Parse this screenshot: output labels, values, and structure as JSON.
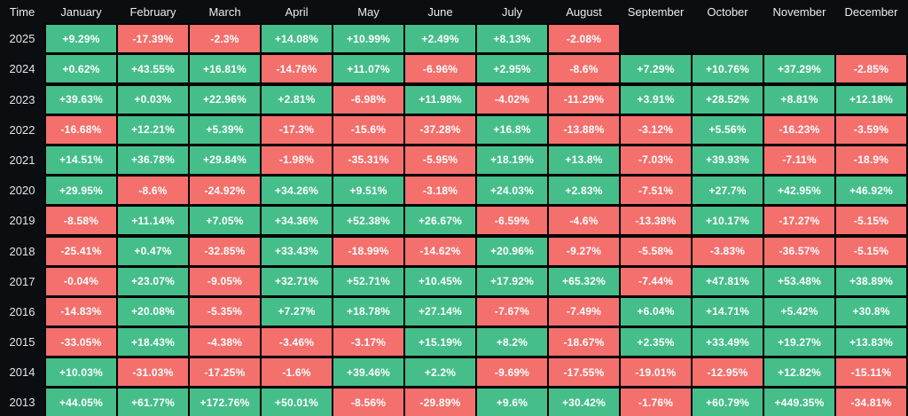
{
  "colors": {
    "background": "#0B0E11",
    "positive": "#46BE8A",
    "negative": "#F4706D",
    "grid_line": "#000000",
    "header_text": "#E9ECEF",
    "year_text": "#E2E6EA",
    "cell_text": "#FFFFFF"
  },
  "table": {
    "corner_label": "Time",
    "months": [
      "January",
      "February",
      "March",
      "April",
      "May",
      "June",
      "July",
      "August",
      "September",
      "October",
      "November",
      "December"
    ],
    "rows": [
      {
        "year": "2025",
        "cells": [
          "+9.29%",
          "-17.39%",
          "-2.3%",
          "+14.08%",
          "+10.99%",
          "+2.49%",
          "+8.13%",
          "-2.08%",
          null,
          null,
          null,
          null
        ]
      },
      {
        "year": "2024",
        "cells": [
          "+0.62%",
          "+43.55%",
          "+16.81%",
          "-14.76%",
          "+11.07%",
          "-6.96%",
          "+2.95%",
          "-8.6%",
          "+7.29%",
          "+10.76%",
          "+37.29%",
          "-2.85%"
        ]
      },
      {
        "year": "2023",
        "cells": [
          "+39.63%",
          "+0.03%",
          "+22.96%",
          "+2.81%",
          "-6.98%",
          "+11.98%",
          "-4.02%",
          "-11.29%",
          "+3.91%",
          "+28.52%",
          "+8.81%",
          "+12.18%"
        ]
      },
      {
        "year": "2022",
        "cells": [
          "-16.68%",
          "+12.21%",
          "+5.39%",
          "-17.3%",
          "-15.6%",
          "-37.28%",
          "+16.8%",
          "-13.88%",
          "-3.12%",
          "+5.56%",
          "-16.23%",
          "-3.59%"
        ]
      },
      {
        "year": "2021",
        "cells": [
          "+14.51%",
          "+36.78%",
          "+29.84%",
          "-1.98%",
          "-35.31%",
          "-5.95%",
          "+18.19%",
          "+13.8%",
          "-7.03%",
          "+39.93%",
          "-7.11%",
          "-18.9%"
        ]
      },
      {
        "year": "2020",
        "cells": [
          "+29.95%",
          "-8.6%",
          "-24.92%",
          "+34.26%",
          "+9.51%",
          "-3.18%",
          "+24.03%",
          "+2.83%",
          "-7.51%",
          "+27.7%",
          "+42.95%",
          "+46.92%"
        ]
      },
      {
        "year": "2019",
        "cells": [
          "-8.58%",
          "+11.14%",
          "+7.05%",
          "+34.36%",
          "+52.38%",
          "+26.67%",
          "-6.59%",
          "-4.6%",
          "-13.38%",
          "+10.17%",
          "-17.27%",
          "-5.15%"
        ]
      },
      {
        "year": "2018",
        "cells": [
          "-25.41%",
          "+0.47%",
          "-32.85%",
          "+33.43%",
          "-18.99%",
          "-14.62%",
          "+20.96%",
          "-9.27%",
          "-5.58%",
          "-3.83%",
          "-36.57%",
          "-5.15%"
        ]
      },
      {
        "year": "2017",
        "cells": [
          "-0.04%",
          "+23.07%",
          "-9.05%",
          "+32.71%",
          "+52.71%",
          "+10.45%",
          "+17.92%",
          "+65.32%",
          "-7.44%",
          "+47.81%",
          "+53.48%",
          "+38.89%"
        ]
      },
      {
        "year": "2016",
        "cells": [
          "-14.83%",
          "+20.08%",
          "-5.35%",
          "+7.27%",
          "+18.78%",
          "+27.14%",
          "-7.67%",
          "-7.49%",
          "+6.04%",
          "+14.71%",
          "+5.42%",
          "+30.8%"
        ]
      },
      {
        "year": "2015",
        "cells": [
          "-33.05%",
          "+18.43%",
          "-4.38%",
          "-3.46%",
          "-3.17%",
          "+15.19%",
          "+8.2%",
          "-18.67%",
          "+2.35%",
          "+33.49%",
          "+19.27%",
          "+13.83%"
        ]
      },
      {
        "year": "2014",
        "cells": [
          "+10.03%",
          "-31.03%",
          "-17.25%",
          "-1.6%",
          "+39.46%",
          "+2.2%",
          "-9.69%",
          "-17.55%",
          "-19.01%",
          "-12.95%",
          "+12.82%",
          "-15.11%"
        ]
      },
      {
        "year": "2013",
        "cells": [
          "+44.05%",
          "+61.77%",
          "+172.76%",
          "+50.01%",
          "-8.56%",
          "-29.89%",
          "+9.6%",
          "+30.42%",
          "-1.76%",
          "+60.79%",
          "+449.35%",
          "-34.81%"
        ]
      }
    ]
  },
  "chart_data": {
    "type": "heatmap",
    "title": "",
    "xlabel": "",
    "ylabel": "Time",
    "unit": "%",
    "columns": [
      "January",
      "February",
      "March",
      "April",
      "May",
      "June",
      "July",
      "August",
      "September",
      "October",
      "November",
      "December"
    ],
    "rows": [
      "2025",
      "2024",
      "2023",
      "2022",
      "2021",
      "2020",
      "2019",
      "2018",
      "2017",
      "2016",
      "2015",
      "2014",
      "2013"
    ],
    "values": [
      [
        9.29,
        -17.39,
        -2.3,
        14.08,
        10.99,
        2.49,
        8.13,
        -2.08,
        null,
        null,
        null,
        null
      ],
      [
        0.62,
        43.55,
        16.81,
        -14.76,
        11.07,
        -6.96,
        2.95,
        -8.6,
        7.29,
        10.76,
        37.29,
        -2.85
      ],
      [
        39.63,
        0.03,
        22.96,
        2.81,
        -6.98,
        11.98,
        -4.02,
        -11.29,
        3.91,
        28.52,
        8.81,
        12.18
      ],
      [
        -16.68,
        12.21,
        5.39,
        -17.3,
        -15.6,
        -37.28,
        16.8,
        -13.88,
        -3.12,
        5.56,
        -16.23,
        -3.59
      ],
      [
        14.51,
        36.78,
        29.84,
        -1.98,
        -35.31,
        -5.95,
        18.19,
        13.8,
        -7.03,
        39.93,
        -7.11,
        -18.9
      ],
      [
        29.95,
        -8.6,
        -24.92,
        34.26,
        9.51,
        -3.18,
        24.03,
        2.83,
        -7.51,
        27.7,
        42.95,
        46.92
      ],
      [
        -8.58,
        11.14,
        7.05,
        34.36,
        52.38,
        26.67,
        -6.59,
        -4.6,
        -13.38,
        10.17,
        -17.27,
        -5.15
      ],
      [
        -25.41,
        0.47,
        -32.85,
        33.43,
        -18.99,
        -14.62,
        20.96,
        -9.27,
        -5.58,
        -3.83,
        -36.57,
        -5.15
      ],
      [
        -0.04,
        23.07,
        -9.05,
        32.71,
        52.71,
        10.45,
        17.92,
        65.32,
        -7.44,
        47.81,
        53.48,
        38.89
      ],
      [
        -14.83,
        20.08,
        -5.35,
        7.27,
        18.78,
        27.14,
        -7.67,
        -7.49,
        6.04,
        14.71,
        5.42,
        30.8
      ],
      [
        -33.05,
        18.43,
        -4.38,
        -3.46,
        -3.17,
        15.19,
        8.2,
        -18.67,
        2.35,
        33.49,
        19.27,
        13.83
      ],
      [
        10.03,
        -31.03,
        -17.25,
        -1.6,
        39.46,
        2.2,
        -9.69,
        -17.55,
        -19.01,
        -12.95,
        12.82,
        -15.11
      ],
      [
        44.05,
        61.77,
        172.76,
        50.01,
        -8.56,
        -29.89,
        9.6,
        30.42,
        -1.76,
        60.79,
        449.35,
        -34.81
      ]
    ],
    "legend": "green = positive monthly return, red = negative monthly return",
    "positive_color": "#46BE8A",
    "negative_color": "#F4706D"
  }
}
